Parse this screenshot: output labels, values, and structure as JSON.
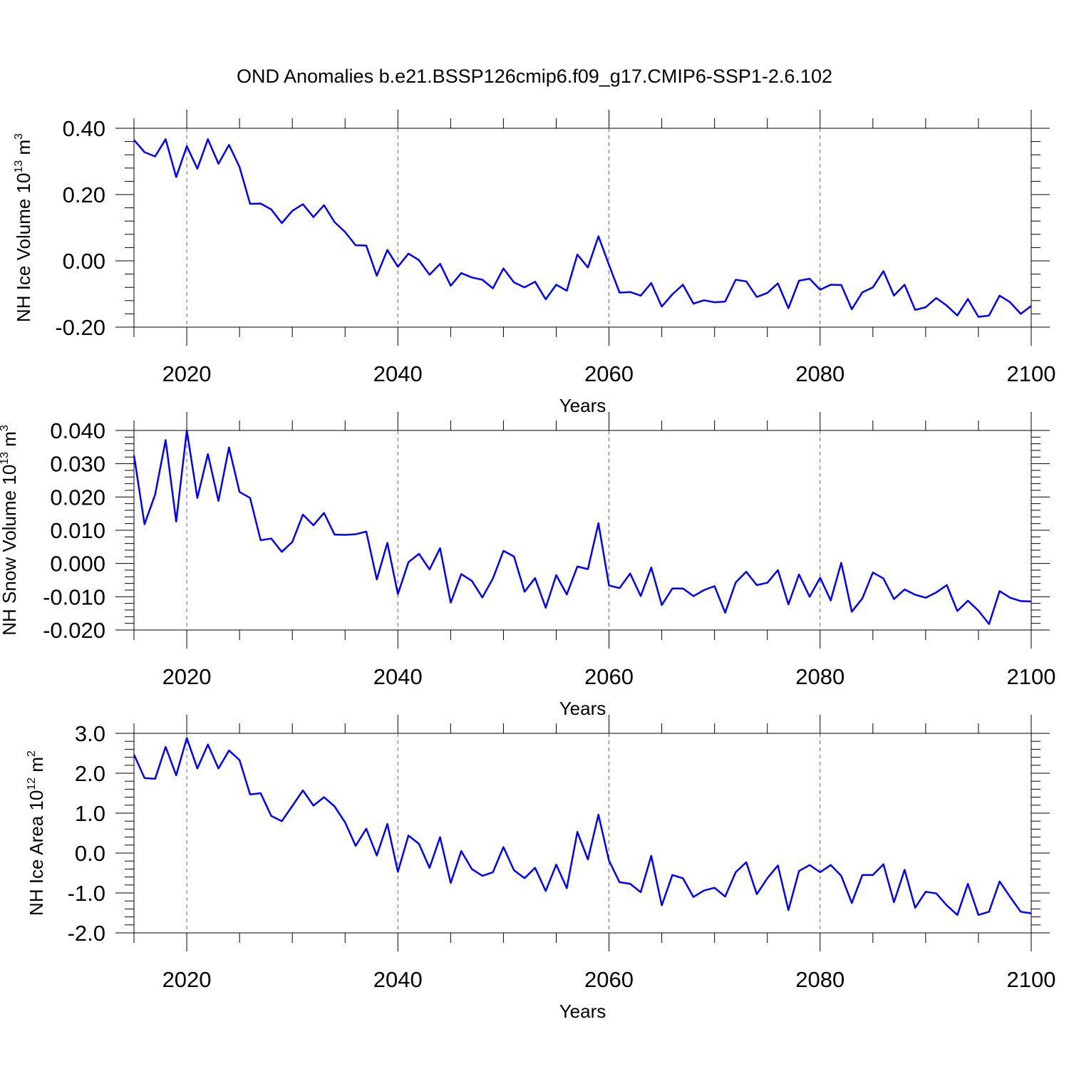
{
  "title": "OND Anomalies b.e21.BSSP126cmip6.f09_g17.CMIP6-SSP1-2.6.102",
  "colors": {
    "line": "#0000ff",
    "axis": "#000000",
    "grid": "#000000",
    "background": "#ffffff"
  },
  "chart_data": [
    {
      "type": "line",
      "ylabel": "NH Ice Volume 10",
      "ylabel_exp": "13",
      "ylabel_unit": " m",
      "ylabel_unit_exp": "3",
      "xlabel": "Years",
      "xlim": [
        2015,
        2100
      ],
      "ylim": [
        -0.2,
        0.4
      ],
      "x_ticks": [
        "2020",
        "2040",
        "2060",
        "2080",
        "2100"
      ],
      "y_ticks": [
        "0.40",
        "0.20",
        "0.00",
        "-0.20"
      ],
      "grid": "dashed vertical lines at 2020, 2040, 2060, 2080",
      "series": [
        {
          "x": [
            2015,
            2016,
            2017,
            2018,
            2019,
            2020,
            2021,
            2022,
            2023,
            2024,
            2025,
            2026,
            2027,
            2028,
            2029,
            2030,
            2031,
            2032,
            2033,
            2034,
            2035,
            2036,
            2037,
            2038,
            2039,
            2040,
            2041,
            2042,
            2043,
            2044,
            2045,
            2046,
            2047,
            2048,
            2049,
            2050,
            2051,
            2052,
            2053,
            2054,
            2055,
            2056,
            2057,
            2058,
            2059,
            2060,
            2061,
            2062,
            2063,
            2064,
            2065,
            2066,
            2067,
            2068,
            2069,
            2070,
            2071,
            2072,
            2073,
            2074,
            2075,
            2076,
            2077,
            2078,
            2079,
            2080,
            2081,
            2082,
            2083,
            2084,
            2085,
            2086,
            2087,
            2088,
            2089,
            2090,
            2091,
            2092,
            2093,
            2094,
            2095,
            2096,
            2097,
            2098,
            2099,
            2100
          ],
          "values": [
            0.365,
            0.328,
            0.315,
            0.367,
            0.253,
            0.346,
            0.278,
            0.367,
            0.293,
            0.35,
            0.283,
            0.172,
            0.173,
            0.155,
            0.114,
            0.151,
            0.171,
            0.132,
            0.168,
            0.117,
            0.087,
            0.047,
            0.046,
            -0.045,
            0.033,
            -0.018,
            0.022,
            0.002,
            -0.042,
            -0.009,
            -0.075,
            -0.037,
            -0.05,
            -0.057,
            -0.083,
            -0.023,
            -0.065,
            -0.08,
            -0.063,
            -0.116,
            -0.072,
            -0.09,
            0.019,
            -0.02,
            0.074,
            -0.012,
            -0.096,
            -0.094,
            -0.105,
            -0.067,
            -0.138,
            -0.101,
            -0.072,
            -0.129,
            -0.119,
            -0.125,
            -0.123,
            -0.057,
            -0.062,
            -0.109,
            -0.097,
            -0.068,
            -0.143,
            -0.06,
            -0.054,
            -0.087,
            -0.072,
            -0.073,
            -0.146,
            -0.095,
            -0.08,
            -0.031,
            -0.105,
            -0.072,
            -0.148,
            -0.14,
            -0.112,
            -0.135,
            -0.165,
            -0.115,
            -0.169,
            -0.165,
            -0.105,
            -0.125,
            -0.16,
            -0.136
          ]
        }
      ]
    },
    {
      "type": "line",
      "ylabel": "NH Snow Volume 10",
      "ylabel_exp": "13",
      "ylabel_unit": " m",
      "ylabel_unit_exp": "3",
      "xlabel": "Years",
      "xlim": [
        2015,
        2100
      ],
      "ylim": [
        -0.02,
        0.04
      ],
      "x_ticks": [
        "2020",
        "2040",
        "2060",
        "2080",
        "2100"
      ],
      "y_ticks": [
        "0.040",
        "0.030",
        "0.020",
        "0.010",
        "0.000",
        "-0.010",
        "-0.020"
      ],
      "grid": "dashed vertical lines at 2020, 2040, 2060, 2080",
      "series": [
        {
          "x": [
            2015,
            2016,
            2017,
            2018,
            2019,
            2020,
            2021,
            2022,
            2023,
            2024,
            2025,
            2026,
            2027,
            2028,
            2029,
            2030,
            2031,
            2032,
            2033,
            2034,
            2035,
            2036,
            2037,
            2038,
            2039,
            2040,
            2041,
            2042,
            2043,
            2044,
            2045,
            2046,
            2047,
            2048,
            2049,
            2050,
            2051,
            2052,
            2053,
            2054,
            2055,
            2056,
            2057,
            2058,
            2059,
            2060,
            2061,
            2062,
            2063,
            2064,
            2065,
            2066,
            2067,
            2068,
            2069,
            2070,
            2071,
            2072,
            2073,
            2074,
            2075,
            2076,
            2077,
            2078,
            2079,
            2080,
            2081,
            2082,
            2083,
            2084,
            2085,
            2086,
            2087,
            2088,
            2089,
            2090,
            2091,
            2092,
            2093,
            2094,
            2095,
            2096,
            2097,
            2098,
            2099,
            2100
          ],
          "values": [
            0.0325,
            0.0118,
            0.0207,
            0.0371,
            0.0126,
            0.04,
            0.0197,
            0.0329,
            0.0188,
            0.0349,
            0.0215,
            0.0197,
            0.007,
            0.0075,
            0.0035,
            0.0065,
            0.0147,
            0.0115,
            0.0152,
            0.0087,
            0.0086,
            0.0088,
            0.0096,
            -0.0048,
            0.0062,
            -0.0092,
            0.0004,
            0.0029,
            -0.0018,
            0.0046,
            -0.0118,
            -0.0032,
            -0.0052,
            -0.0102,
            -0.0045,
            0.0038,
            0.0021,
            -0.0085,
            -0.0044,
            -0.0133,
            -0.0035,
            -0.0093,
            -0.0009,
            -0.0017,
            0.0121,
            -0.0066,
            -0.0074,
            -0.003,
            -0.0098,
            -0.0012,
            -0.0125,
            -0.0075,
            -0.0075,
            -0.0098,
            -0.008,
            -0.0068,
            -0.0148,
            -0.0057,
            -0.0025,
            -0.0065,
            -0.0058,
            -0.002,
            -0.0123,
            -0.0033,
            -0.01,
            -0.0043,
            -0.0111,
            0.0002,
            -0.0145,
            -0.0105,
            -0.0027,
            -0.0045,
            -0.0107,
            -0.0078,
            -0.0094,
            -0.0103,
            -0.0087,
            -0.0065,
            -0.0143,
            -0.0112,
            -0.0142,
            -0.0182,
            -0.0083,
            -0.0103,
            -0.0113,
            -0.0114
          ]
        }
      ]
    },
    {
      "type": "line",
      "ylabel": "NH Ice Area 10",
      "ylabel_exp": "12",
      "ylabel_unit": " m",
      "ylabel_unit_exp": "2",
      "xlabel": "Years",
      "xlim": [
        2015,
        2100
      ],
      "ylim": [
        -2.0,
        3.0
      ],
      "x_ticks": [
        "2020",
        "2040",
        "2060",
        "2080",
        "2100"
      ],
      "y_ticks": [
        "3.0",
        "2.0",
        "1.0",
        "0.0",
        "-1.0",
        "-2.0"
      ],
      "grid": "dashed vertical lines at 2020, 2040, 2060, 2080",
      "series": [
        {
          "x": [
            2015,
            2016,
            2017,
            2018,
            2019,
            2020,
            2021,
            2022,
            2023,
            2024,
            2025,
            2026,
            2027,
            2028,
            2029,
            2030,
            2031,
            2032,
            2033,
            2034,
            2035,
            2036,
            2037,
            2038,
            2039,
            2040,
            2041,
            2042,
            2043,
            2044,
            2045,
            2046,
            2047,
            2048,
            2049,
            2050,
            2051,
            2052,
            2053,
            2054,
            2055,
            2056,
            2057,
            2058,
            2059,
            2060,
            2061,
            2062,
            2063,
            2064,
            2065,
            2066,
            2067,
            2068,
            2069,
            2070,
            2071,
            2072,
            2073,
            2074,
            2075,
            2076,
            2077,
            2078,
            2079,
            2080,
            2081,
            2082,
            2083,
            2084,
            2085,
            2086,
            2087,
            2088,
            2089,
            2090,
            2091,
            2092,
            2093,
            2094,
            2095,
            2096,
            2097,
            2098,
            2099,
            2100
          ],
          "values": [
            2.47,
            1.88,
            1.86,
            2.66,
            1.95,
            2.88,
            2.12,
            2.72,
            2.12,
            2.57,
            2.33,
            1.47,
            1.5,
            0.93,
            0.8,
            1.18,
            1.57,
            1.19,
            1.4,
            1.17,
            0.77,
            0.18,
            0.61,
            -0.06,
            0.73,
            -0.47,
            0.44,
            0.23,
            -0.37,
            0.4,
            -0.75,
            0.05,
            -0.4,
            -0.57,
            -0.48,
            0.15,
            -0.43,
            -0.63,
            -0.37,
            -0.95,
            -0.29,
            -0.88,
            0.53,
            -0.16,
            0.96,
            -0.19,
            -0.73,
            -0.77,
            -0.98,
            -0.07,
            -1.31,
            -0.55,
            -0.63,
            -1.1,
            -0.94,
            -0.87,
            -1.09,
            -0.48,
            -0.23,
            -1.03,
            -0.63,
            -0.31,
            -1.43,
            -0.45,
            -0.3,
            -0.48,
            -0.3,
            -0.57,
            -1.25,
            -0.55,
            -0.55,
            -0.28,
            -1.23,
            -0.42,
            -1.37,
            -0.97,
            -1.01,
            -1.31,
            -1.55,
            -0.77,
            -1.55,
            -1.47,
            -0.71,
            -1.1,
            -1.47,
            -1.51
          ]
        }
      ]
    }
  ]
}
